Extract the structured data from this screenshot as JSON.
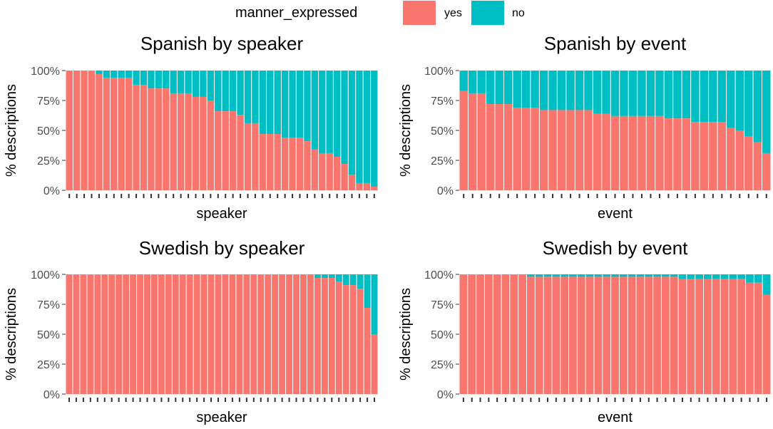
{
  "legend": {
    "title": "manner_expressed",
    "entries": [
      {
        "key": "yes",
        "label": "yes",
        "color": "#F8766D"
      },
      {
        "key": "no",
        "label": "no",
        "color": "#00BFC4"
      }
    ]
  },
  "chart_data": [
    {
      "type": "bar",
      "stacked": true,
      "title": "Spanish by speaker",
      "xlabel": "speaker",
      "ylabel": "% descriptions",
      "ylim": [
        0,
        100
      ],
      "yticks": [
        "0%",
        "25%",
        "50%",
        "75%",
        "100%"
      ],
      "series": [
        {
          "name": "yes",
          "values": [
            100,
            100,
            100,
            100,
            97,
            94,
            94,
            94,
            94,
            88,
            88,
            85,
            85,
            85,
            81,
            81,
            81,
            78,
            78,
            75,
            66,
            66,
            66,
            63,
            56,
            56,
            47,
            47,
            47,
            44,
            44,
            44,
            41,
            34,
            31,
            31,
            28,
            22,
            13,
            6,
            6,
            3
          ]
        }
      ]
    },
    {
      "type": "bar",
      "stacked": true,
      "title": "Spanish by event",
      "xlabel": "event",
      "ylabel": "% descriptions",
      "ylim": [
        0,
        100
      ],
      "yticks": [
        "0%",
        "25%",
        "50%",
        "75%",
        "100%"
      ],
      "series": [
        {
          "name": "yes",
          "values": [
            83,
            81,
            81,
            72,
            72,
            72,
            69,
            69,
            69,
            67,
            67,
            67,
            67,
            67,
            67,
            64,
            64,
            62,
            62,
            62,
            62,
            62,
            62,
            60,
            60,
            60,
            57,
            57,
            57,
            57,
            52,
            50,
            45,
            40,
            31
          ]
        }
      ]
    },
    {
      "type": "bar",
      "stacked": true,
      "title": "Swedish by speaker",
      "xlabel": "speaker",
      "ylabel": "% descriptions",
      "ylim": [
        0,
        100
      ],
      "yticks": [
        "0%",
        "25%",
        "50%",
        "75%",
        "100%"
      ],
      "series": [
        {
          "name": "yes",
          "values": [
            100,
            100,
            100,
            100,
            100,
            100,
            100,
            100,
            100,
            100,
            100,
            100,
            100,
            100,
            100,
            100,
            100,
            100,
            100,
            100,
            100,
            100,
            100,
            100,
            100,
            100,
            100,
            100,
            100,
            100,
            100,
            100,
            100,
            100,
            100,
            97,
            97,
            97,
            94,
            91,
            91,
            88,
            72,
            50
          ]
        }
      ]
    },
    {
      "type": "bar",
      "stacked": true,
      "title": "Swedish by event",
      "xlabel": "event",
      "ylabel": "% descriptions",
      "ylim": [
        0,
        100
      ],
      "yticks": [
        "0%",
        "25%",
        "50%",
        "75%",
        "100%"
      ],
      "series": [
        {
          "name": "yes",
          "values": [
            100,
            100,
            100,
            100,
            100,
            100,
            100,
            100,
            98,
            98,
            98,
            98,
            98,
            98,
            98,
            98,
            98,
            98,
            98,
            98,
            98,
            98,
            98,
            98,
            98,
            98,
            96,
            96,
            96,
            96,
            96,
            96,
            96,
            96,
            93,
            93,
            83
          ]
        }
      ]
    }
  ]
}
